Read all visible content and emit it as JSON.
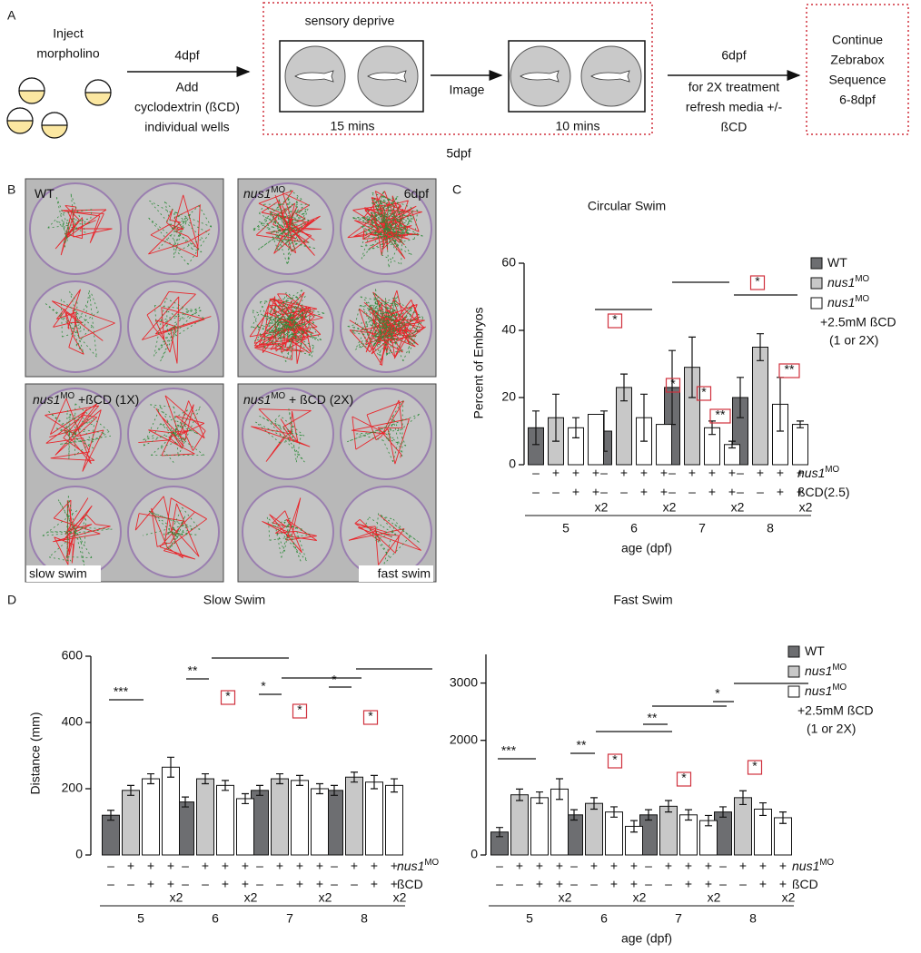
{
  "panel_labels": [
    "A",
    "B",
    "C",
    "D"
  ],
  "diagram": {
    "inject": [
      "Inject",
      "morpholino"
    ],
    "step1_top": "4dpf",
    "step1_bottom": [
      "Add",
      "cyclodextrin (ßCD)",
      "individual wells"
    ],
    "box1_title": "sensory deprive",
    "box1_time": "15 mins",
    "step2": "Image",
    "box2_time": "10 mins",
    "day": "5dpf",
    "step3_top": "6dpf",
    "step3_bottom": [
      "for 2X treatment",
      "refresh media +/-",
      "ßCD"
    ],
    "final": [
      "Continue",
      "Zebrabox",
      "Sequence",
      "6-8dpf"
    ]
  },
  "images": {
    "labels": [
      {
        "label": "WT"
      },
      {
        "label": "nus1",
        "sup": "MO"
      },
      {
        "label": "6dpf"
      },
      {
        "label": "nus1",
        "sup": "MO",
        "rest": " +ßCD (1X)"
      },
      {
        "label": "nus1",
        "sup": "MO",
        "rest": " + ßCD (2X)"
      },
      {
        "label": "slow swim"
      },
      {
        "label": "fast swim"
      }
    ]
  },
  "chart_data": [
    {
      "type": "bar",
      "title": "Circular Swim",
      "y_label": "Percent of Embryos",
      "x_label": "age (dpf)",
      "categories": [
        "5",
        "6",
        "7",
        "8"
      ],
      "ylim": [
        0,
        60
      ],
      "yticks": [
        0,
        20,
        40,
        60
      ],
      "series": [
        {
          "color": "#6d6e71",
          "values": [
            11,
            10,
            23,
            20
          ],
          "errors": [
            5,
            6,
            11,
            6
          ]
        },
        {
          "color": "#c8c8c8",
          "values": [
            14,
            23,
            29,
            35
          ],
          "errors": [
            7,
            4,
            9,
            4
          ]
        },
        {
          "color": "#ffffff",
          "values": [
            11,
            14,
            11,
            18
          ],
          "errors": [
            3,
            7,
            2,
            8
          ]
        },
        {
          "color": "#ffffff",
          "values": [
            15,
            12,
            6,
            12
          ],
          "errors": [
            0,
            0,
            1,
            1
          ]
        }
      ],
      "rows": [
        {
          "label": "nus1",
          "sup": "MO",
          "signs": [
            "–",
            "+",
            "+",
            "+"
          ]
        },
        {
          "label": "ßCD(2.5)",
          "signs": [
            "–",
            "–",
            "+",
            "+"
          ]
        }
      ],
      "notes": [
        null,
        null,
        null,
        "x2"
      ],
      "annotations": [
        {
          "text": "*",
          "boxed": true
        },
        {
          "text": "*",
          "boxed": true
        },
        {
          "text": "*",
          "boxed": true
        },
        {
          "text": "**",
          "boxed": true
        },
        {
          "text": "*",
          "boxed": true
        },
        {
          "text": "**",
          "boxed": true
        }
      ],
      "legend": [
        {
          "label": "WT",
          "color": "#6d6e71"
        },
        {
          "label": "nus1",
          "sup": "MO",
          "color": "#c8c8c8"
        },
        {
          "label": "nus1",
          "sup": "MO",
          "color": "#ffffff",
          "lines": [
            "+2.5mM ßCD",
            "(1 or 2X)"
          ]
        }
      ]
    },
    {
      "type": "bar",
      "title": "Slow Swim",
      "y_label": "Distance (mm)",
      "categories": [
        "5",
        "6",
        "7",
        "8"
      ],
      "ylim": [
        0,
        600
      ],
      "yticks": [
        0,
        200,
        400,
        600
      ],
      "series": [
        {
          "color": "#6d6e71",
          "values": [
            120,
            160,
            195,
            195
          ],
          "errors": [
            15,
            15,
            15,
            15
          ]
        },
        {
          "color": "#c8c8c8",
          "values": [
            195,
            230,
            230,
            235
          ],
          "errors": [
            15,
            15,
            15,
            15
          ]
        },
        {
          "color": "#ffffff",
          "values": [
            230,
            210,
            225,
            220
          ],
          "errors": [
            15,
            15,
            15,
            20
          ]
        },
        {
          "color": "#ffffff",
          "values": [
            265,
            170,
            200,
            210
          ],
          "errors": [
            30,
            15,
            15,
            20
          ]
        }
      ],
      "rows": [
        {
          "label": "nus1",
          "sup": "MO",
          "signs": [
            "–",
            "+",
            "+",
            "+"
          ]
        },
        {
          "label": "ßCD",
          "signs": [
            "–",
            "–",
            "+",
            "+"
          ]
        }
      ],
      "notes": [
        null,
        null,
        null,
        "x2"
      ],
      "annotations": [
        {
          "text": "***",
          "boxed": false
        },
        {
          "text": "**",
          "boxed": false
        },
        {
          "text": "*",
          "boxed": true
        },
        {
          "text": "*",
          "boxed": false
        },
        {
          "text": "*",
          "boxed": true
        },
        {
          "text": "*",
          "boxed": false
        },
        {
          "text": "*",
          "boxed": true
        }
      ]
    },
    {
      "type": "bar",
      "title": "Fast Swim",
      "x_label": "age (dpf)",
      "categories": [
        "5",
        "6",
        "7",
        "8"
      ],
      "ylim": [
        0,
        3500
      ],
      "yticks": [
        0,
        2000,
        3000
      ],
      "series": [
        {
          "color": "#6d6e71",
          "values": [
            400,
            700,
            700,
            750
          ],
          "errors": [
            80,
            90,
            90,
            90
          ]
        },
        {
          "color": "#c8c8c8",
          "values": [
            1050,
            900,
            850,
            1000
          ],
          "errors": [
            100,
            100,
            100,
            120
          ]
        },
        {
          "color": "#ffffff",
          "values": [
            1000,
            750,
            700,
            800
          ],
          "errors": [
            100,
            90,
            90,
            110
          ]
        },
        {
          "color": "#ffffff",
          "values": [
            1150,
            500,
            600,
            650
          ],
          "errors": [
            180,
            100,
            90,
            100
          ]
        }
      ],
      "rows": [
        {
          "label": "nus1",
          "sup": "MO",
          "signs": [
            "–",
            "+",
            "+",
            "+"
          ]
        },
        {
          "label": "ßCD",
          "signs": [
            "–",
            "–",
            "+",
            "+"
          ]
        }
      ],
      "notes": [
        null,
        null,
        null,
        "x2"
      ],
      "annotations": [
        {
          "text": "***",
          "boxed": false
        },
        {
          "text": "**",
          "boxed": false
        },
        {
          "text": "*",
          "boxed": true
        },
        {
          "text": "**",
          "boxed": false
        },
        {
          "text": "*",
          "boxed": true
        },
        {
          "text": "*",
          "boxed": false
        },
        {
          "text": "*",
          "boxed": true
        }
      ],
      "legend": [
        {
          "label": "WT",
          "color": "#6d6e71"
        },
        {
          "label": "nus1",
          "sup": "MO",
          "color": "#c8c8c8"
        },
        {
          "label": "nus1",
          "sup": "MO",
          "color": "#ffffff",
          "lines": [
            "+2.5mM ßCD",
            "(1 or 2X)"
          ]
        }
      ]
    }
  ]
}
